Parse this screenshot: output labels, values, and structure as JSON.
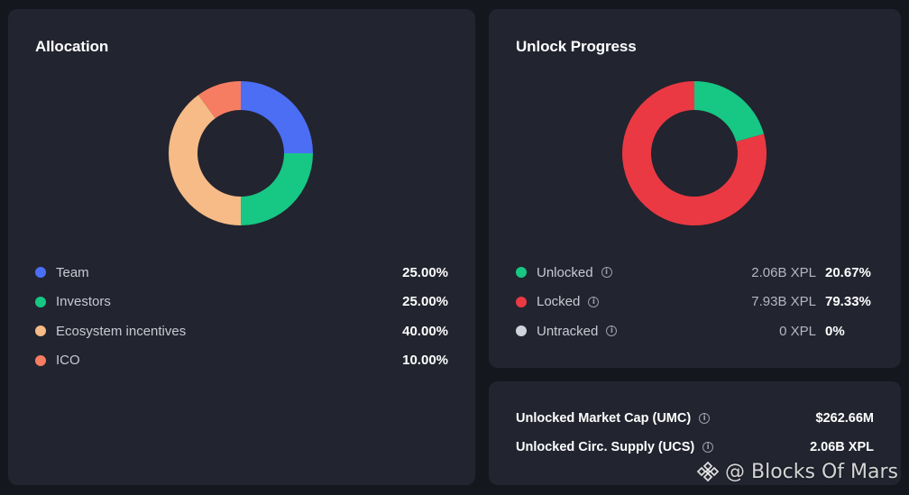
{
  "allocation": {
    "title": "Allocation",
    "items": [
      {
        "label": "Team",
        "percent": "25.00%",
        "value": 25,
        "color": "#4b6ef5"
      },
      {
        "label": "Investors",
        "percent": "25.00%",
        "value": 25,
        "color": "#17c784"
      },
      {
        "label": "Ecosystem incentives",
        "percent": "40.00%",
        "value": 40,
        "color": "#f6bb86"
      },
      {
        "label": "ICO",
        "percent": "10.00%",
        "value": 10,
        "color": "#f77d62"
      }
    ]
  },
  "unlock": {
    "title": "Unlock Progress",
    "items": [
      {
        "label": "Unlocked",
        "amount": "2.06B XPL",
        "percent": "20.67%",
        "value": 20.67,
        "color": "#17c784"
      },
      {
        "label": "Locked",
        "amount": "7.93B XPL",
        "percent": "79.33%",
        "value": 79.33,
        "color": "#ea3943"
      },
      {
        "label": "Untracked",
        "amount": "0 XPL",
        "percent": "0%",
        "value": 0,
        "color": "#cfd3dc"
      }
    ]
  },
  "metrics": {
    "umc_label": "Unlocked Market Cap (UMC)",
    "umc_value": "$262.66M",
    "ucs_label": "Unlocked Circ. Supply (UCS)",
    "ucs_value": "2.06B XPL"
  },
  "watermark": {
    "text": "@ Blocks Of Mars"
  },
  "icons": {
    "info": "info-icon",
    "watermark_logo": "binance-logo-icon"
  }
}
